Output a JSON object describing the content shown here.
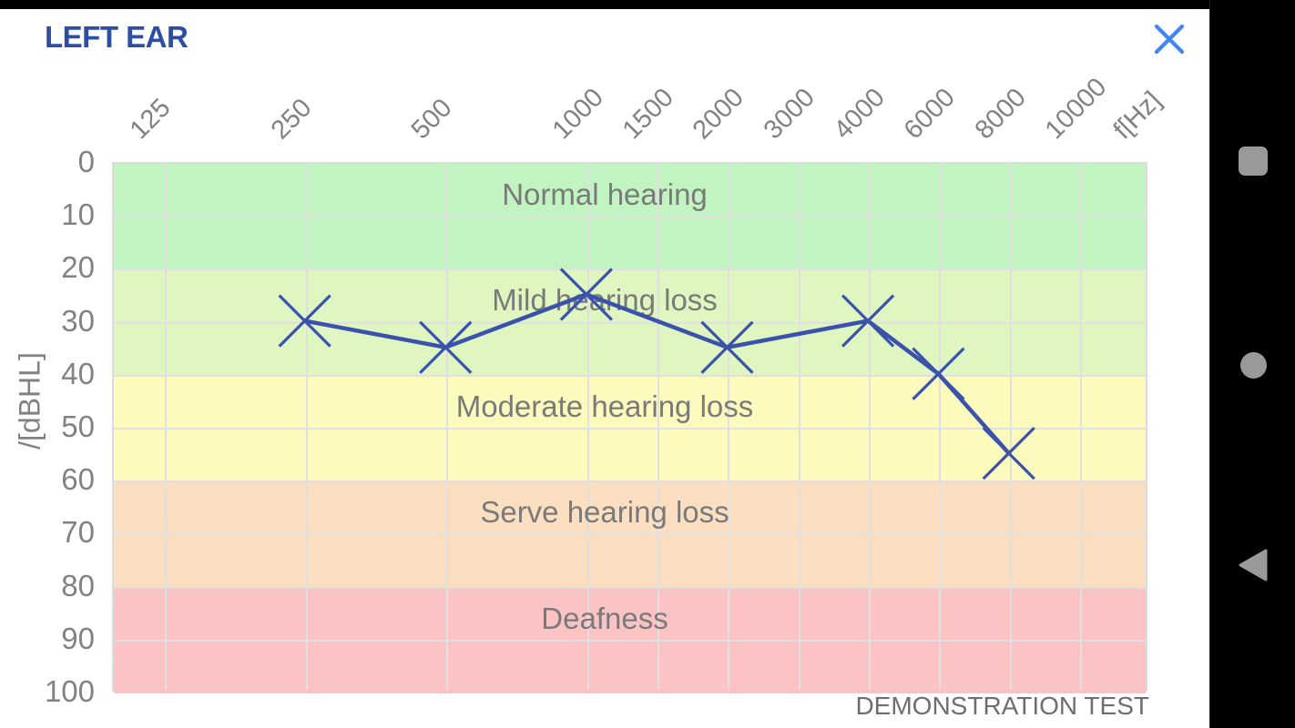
{
  "header": {
    "title": "LEFT EAR"
  },
  "footer": {
    "note": "DEMONSTRATION TEST"
  },
  "colors": {
    "title": "#2c4fa3",
    "close_icon": "#4286f4",
    "series_line": "#3a52ac",
    "grid": "#e0e0e0",
    "axis_text": "#828282",
    "band_text": "#7a7a7a",
    "note_text": "#6e6e6e",
    "nav_icon": "#999999"
  },
  "chart_data": {
    "type": "line",
    "title": "LEFT EAR",
    "xlabel": "f[Hz]",
    "ylabel": "/[dBHL]",
    "x_ticks": [
      "125",
      "250",
      "500",
      "1000",
      "1500",
      "2000",
      "3000",
      "4000",
      "6000",
      "8000",
      "10000"
    ],
    "y_ticks": [
      "0",
      "10",
      "20",
      "30",
      "40",
      "50",
      "60",
      "70",
      "80",
      "90",
      "100"
    ],
    "ylim": [
      0,
      100
    ],
    "x_scale": "log-octave",
    "grid": true,
    "series": [
      {
        "name": "left-ear-threshold",
        "marker": "x",
        "color": "#3a52ac",
        "points": [
          {
            "freq": 250,
            "db": 30
          },
          {
            "freq": 500,
            "db": 35
          },
          {
            "freq": 1000,
            "db": 25
          },
          {
            "freq": 2000,
            "db": 35
          },
          {
            "freq": 4000,
            "db": 30
          },
          {
            "freq": 6000,
            "db": 40
          },
          {
            "freq": 8000,
            "db": 55
          }
        ]
      }
    ],
    "bands": [
      {
        "label": "Normal hearing",
        "from": 0,
        "to": 20,
        "color": "#c1f4c0"
      },
      {
        "label": "Mild hearing loss",
        "from": 20,
        "to": 40,
        "color": "#dff6c0"
      },
      {
        "label": "Moderate hearing loss",
        "from": 40,
        "to": 60,
        "color": "#fdfabd"
      },
      {
        "label": "Serve hearing loss",
        "from": 60,
        "to": 80,
        "color": "#fbdfc0"
      },
      {
        "label": "Deafness",
        "from": 80,
        "to": 100,
        "color": "#fbc3c3"
      }
    ],
    "annotation": "DEMONSTRATION TEST"
  },
  "nav": {
    "buttons": [
      {
        "name": "recents",
        "shape": "square"
      },
      {
        "name": "home",
        "shape": "circle"
      },
      {
        "name": "back",
        "shape": "triangle-left"
      }
    ]
  }
}
